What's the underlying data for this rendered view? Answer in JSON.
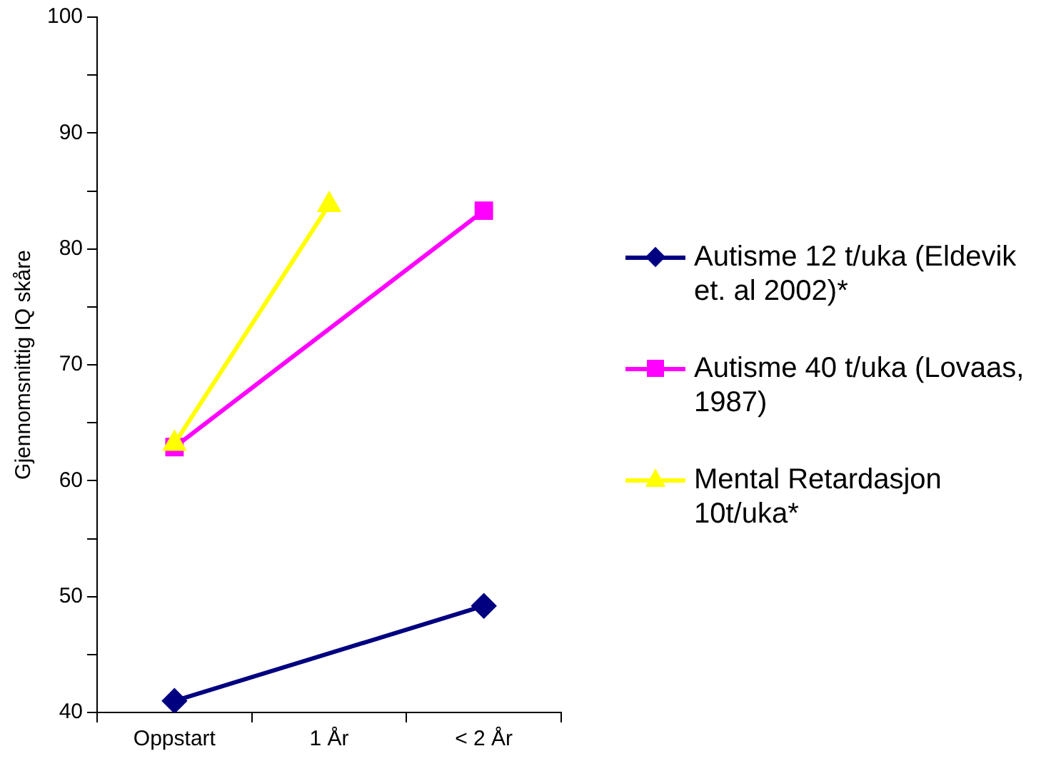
{
  "chart_data": {
    "type": "line",
    "ylabel": "Gjennomsnittig IQ skåre",
    "categories": [
      "Oppstart",
      "1 År",
      "< 2 År"
    ],
    "series": [
      {
        "name": "Autisme 12 t/uka (Eldevik et. al 2002)*",
        "color": "#000080",
        "marker": "diamond",
        "values": [
          41.0,
          null,
          49.2
        ]
      },
      {
        "name": "Autisme 40 t/uka (Lovaas, 1987)",
        "color": "#ff00ff",
        "marker": "square",
        "values": [
          62.9,
          null,
          83.3
        ]
      },
      {
        "name": "Mental Retardasjon 10t/uka*",
        "color": "#ffff00",
        "marker": "triangle",
        "values": [
          63.2,
          83.8,
          null
        ]
      }
    ],
    "ylim": [
      40,
      100
    ],
    "yticks": [
      40,
      {
        "value": 45,
        "label": null
      },
      50,
      {
        "value": 55,
        "label": null
      },
      60,
      {
        "value": 65,
        "label": null
      },
      70,
      {
        "value": 75,
        "label": null
      },
      80,
      {
        "value": 85,
        "label": null
      },
      90,
      {
        "value": 95,
        "label": null
      },
      100
    ],
    "grid": false,
    "legend": "right"
  }
}
